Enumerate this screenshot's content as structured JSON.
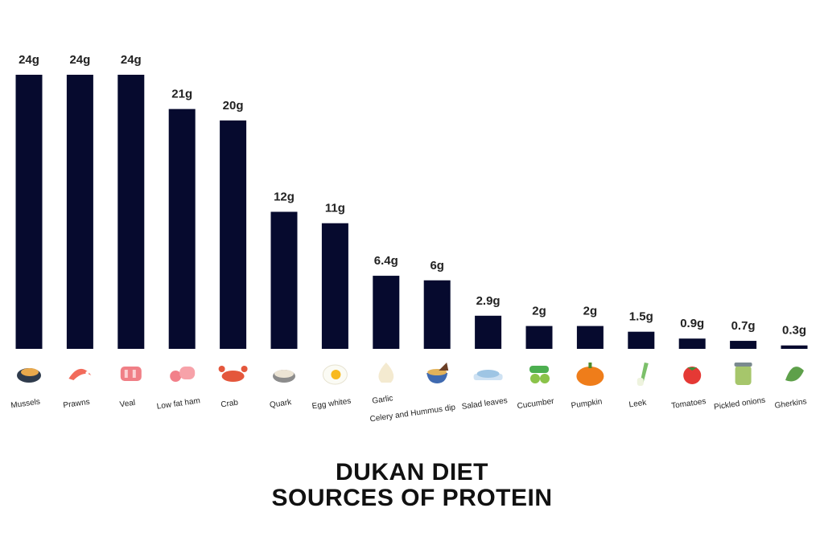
{
  "chart_data": {
    "type": "bar",
    "title": [
      "DUKAN DIET",
      "SOURCES OF PROTEIN"
    ],
    "categories": [
      "Mussels",
      "Prawns",
      "Veal",
      "Low fat ham",
      "Crab",
      "Quark",
      "Egg whites",
      "Garlic",
      "Celery and Hummus dip",
      "Salad leaves",
      "Cucumber",
      "Pumpkin",
      "Leek",
      "Tomatoes",
      "Pickled onions",
      "Gherkins"
    ],
    "values": [
      24,
      24,
      24,
      21,
      20,
      12,
      11,
      6.4,
      6,
      2.9,
      2,
      2,
      1.5,
      0.9,
      0.7,
      0.3
    ],
    "value_labels": [
      "24g",
      "24g",
      "24g",
      "21g",
      "20g",
      "12g",
      "11g",
      "6.4g",
      "6g",
      "2.9g",
      "2g",
      "2g",
      "1.5g",
      "0.9g",
      "0.7g",
      "0.3g"
    ],
    "icons": [
      "mussel-icon",
      "prawn-icon",
      "veal-icon",
      "ham-icon",
      "crab-icon",
      "quark-icon",
      "egg-icon",
      "garlic-icon",
      "hummus-dip-icon",
      "salad-icon",
      "cucumber-icon",
      "pumpkin-icon",
      "leek-icon",
      "tomato-icon",
      "pickled-onions-jar-icon",
      "gherkin-icon"
    ],
    "bar_color": "#060a2e",
    "xlabel": "",
    "ylabel": "",
    "ylim": [
      0,
      24
    ],
    "grid": false,
    "legend": "none"
  }
}
